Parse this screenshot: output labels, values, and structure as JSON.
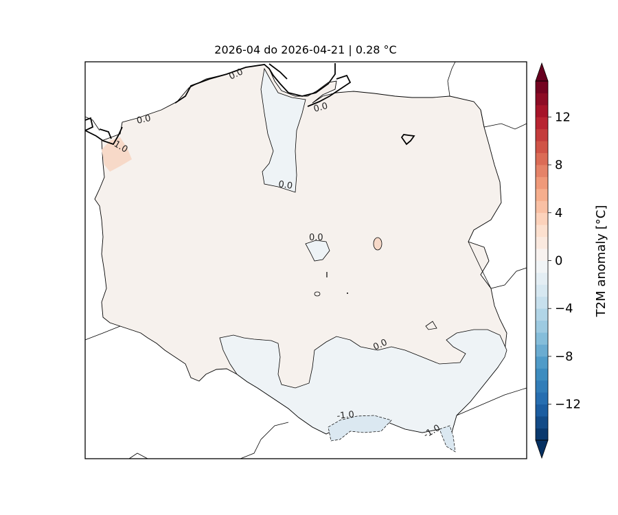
{
  "title": "2026-04 do 2026-04-21 | 0.28 °C",
  "colorbar": {
    "label": "T2M anomaly [°C]",
    "ticks": [
      "12",
      "8",
      "4",
      "0",
      "−4",
      "−8",
      "−12"
    ],
    "tick_values": [
      12,
      8,
      4,
      0,
      -4,
      -8,
      -12
    ],
    "range": [
      -15,
      15
    ],
    "extend": "both",
    "colormap": "RdBu_r"
  },
  "contour_labels": {
    "north_coast": "0.0",
    "northwest_coast": "0.0",
    "west_coast": "1.0",
    "gdansk_bay": "0.0",
    "vistula": "0.0",
    "center": "0.0",
    "south_edge": "0.0",
    "tatra": "-1.0",
    "bieszczady": "-1.0"
  },
  "colors": {
    "positive_fill": "#f6f1ed",
    "warm_patch": "#f7d9c8",
    "negative_fill": "#eef3f6",
    "cold_patch": "#dbe8f1",
    "border": "#000000"
  },
  "chart_data": {
    "type": "heatmap",
    "title": "2026-04 do 2026-04-21 | 0.28 °C",
    "mean_anomaly_c": 0.28,
    "contour_levels_labeled": [
      -1.0,
      0.0,
      1.0
    ],
    "colorbar_ticks": [
      -12,
      -8,
      -4,
      0,
      4,
      8,
      12
    ],
    "colorbar_range": [
      -15,
      15
    ]
  }
}
